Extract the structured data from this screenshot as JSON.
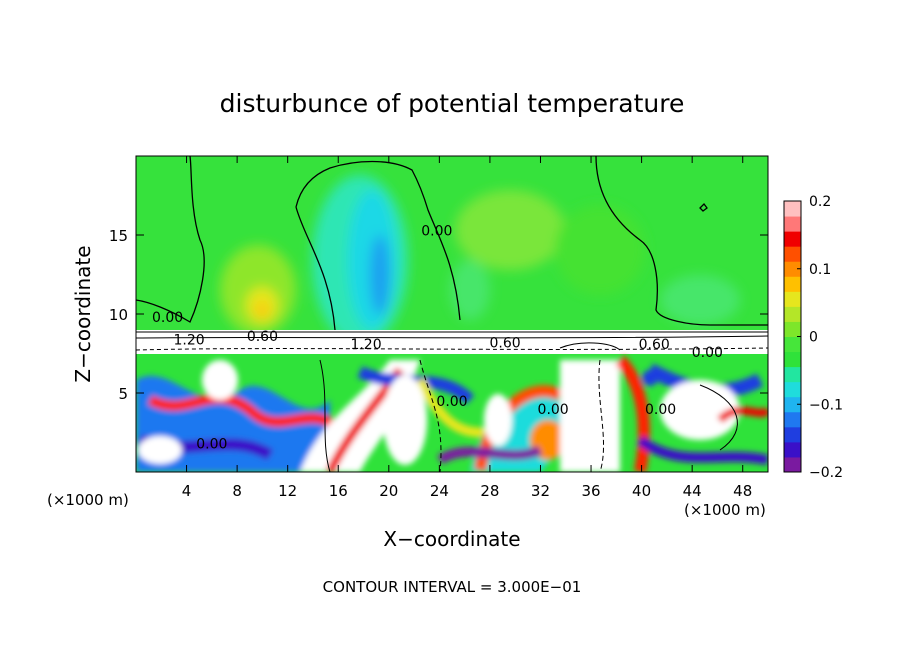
{
  "chart_data": {
    "type": "heatmap",
    "title": "disturbunce of potential temperature",
    "xlabel": "X−coordinate",
    "ylabel": "Z−coordinate",
    "x_unit_label_left": "(×1000 m)",
    "x_unit_label_right": "(×1000 m)",
    "footer": "CONTOUR INTERVAL = 3.000E−01",
    "xlim": [
      0,
      50
    ],
    "ylim": [
      0,
      20
    ],
    "x_ticks": [
      4,
      8,
      12,
      16,
      20,
      24,
      28,
      32,
      36,
      40,
      44,
      48
    ],
    "y_ticks": [
      5,
      10,
      15
    ],
    "colorbar": {
      "range": [
        -0.2,
        0.2
      ],
      "tick_values": [
        0.2,
        0.1,
        0,
        -0.1,
        -0.2
      ],
      "tick_labels": [
        "0.2",
        "0.1",
        "0",
        "−0.1",
        "−0.2"
      ],
      "colors": [
        "#7a1aa0",
        "#3a10c8",
        "#1f3ee0",
        "#1f78f0",
        "#1fb4f0",
        "#1fdcdc",
        "#22e6a0",
        "#2fe23a",
        "#46e63a",
        "#7de62a",
        "#b4e628",
        "#e6e61e",
        "#ffc000",
        "#ff8c00",
        "#ff5000",
        "#f00000",
        "#ff7878",
        "#ffc0c0"
      ]
    },
    "contour_labels": [
      {
        "text": "0.00",
        "x": 2.5,
        "z": 9.8
      },
      {
        "text": "0.00",
        "x": 23.8,
        "z": 15.3
      },
      {
        "text": "1.20",
        "x": 4.2,
        "z": 8.4
      },
      {
        "text": "0.60",
        "x": 10.0,
        "z": 8.6
      },
      {
        "text": "1.20",
        "x": 18.2,
        "z": 8.1
      },
      {
        "text": "0.60",
        "x": 29.2,
        "z": 8.2
      },
      {
        "text": "0.60",
        "x": 41.0,
        "z": 8.1
      },
      {
        "text": "0.00",
        "x": 45.2,
        "z": 7.6
      },
      {
        "text": "0.00",
        "x": 25.0,
        "z": 4.5
      },
      {
        "text": "0.00",
        "x": 33.0,
        "z": 4.0
      },
      {
        "text": "0.00",
        "x": 41.5,
        "z": 4.0
      },
      {
        "text": "0.00",
        "x": 6.0,
        "z": 1.8
      }
    ]
  }
}
